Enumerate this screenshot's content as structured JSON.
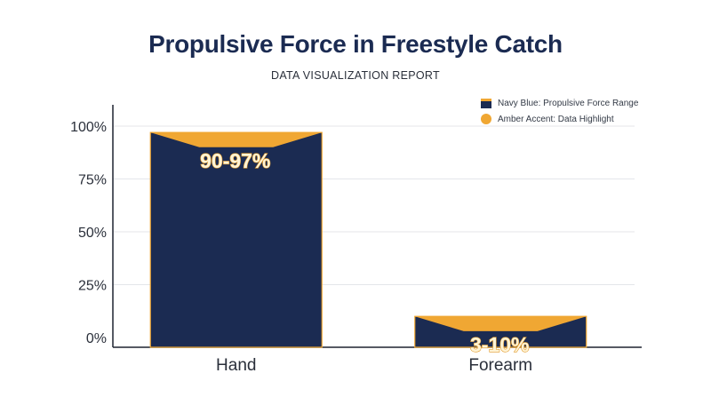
{
  "title": "Propulsive Force in Freestyle Catch",
  "subtitle": "DATA VISUALIZATION REPORT",
  "legend": [
    {
      "label": "Navy Blue: Propulsive Force Range",
      "color": "#1b2b52",
      "shape": "bar"
    },
    {
      "label": "Amber Accent: Data Highlight",
      "color": "#f0a733",
      "shape": "circle"
    }
  ],
  "colors": {
    "navy": "#1b2b52",
    "amber": "#f0a733",
    "grid": "#e4e6ea",
    "axis": "#1f2430"
  },
  "chart_data": {
    "type": "bar",
    "categories": [
      "Hand",
      "Forearm"
    ],
    "series": [
      {
        "low": [
          90,
          3
        ],
        "high": [
          97,
          10
        ],
        "labels": [
          "90-97%",
          "3-10%"
        ]
      }
    ],
    "ylim": [
      0,
      100
    ],
    "yticks": [
      "0%",
      "25%",
      "50%",
      "75%",
      "100%"
    ],
    "ytick_values": [
      0,
      25,
      50,
      75,
      100
    ],
    "grid": true,
    "legend_position": "top-right"
  }
}
